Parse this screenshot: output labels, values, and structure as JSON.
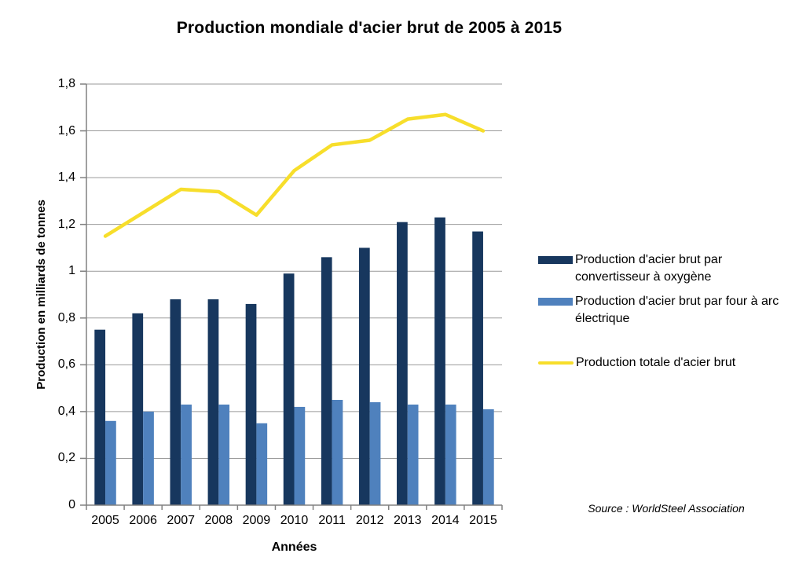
{
  "chart_data": {
    "type": "combo-bar-line",
    "title": "Production mondiale d'acier brut de 2005 à 2015",
    "xlabel": "Années",
    "ylabel": "Production en milliards de tonnes",
    "ylim": [
      0,
      1.8
    ],
    "ytick_step": 0.2,
    "ytick_labels": [
      "0",
      "0,2",
      "0,4",
      "0,6",
      "0,8",
      "1",
      "1,2",
      "1,4",
      "1,6",
      "1,8"
    ],
    "grid": "horizontal",
    "legend_position": "right",
    "categories": [
      "2005",
      "2006",
      "2007",
      "2008",
      "2009",
      "2010",
      "2011",
      "2012",
      "2013",
      "2014",
      "2015"
    ],
    "series": [
      {
        "name": "Production d'acier brut par convertisseur à oxygène",
        "type": "bar",
        "color": "#17375E",
        "values": [
          0.75,
          0.82,
          0.88,
          0.88,
          0.86,
          0.99,
          1.06,
          1.1,
          1.21,
          1.23,
          1.17
        ]
      },
      {
        "name": "Production d'acier brut par four à arc électrique",
        "type": "bar",
        "color": "#4F81BD",
        "values": [
          0.36,
          0.4,
          0.43,
          0.43,
          0.35,
          0.42,
          0.45,
          0.44,
          0.43,
          0.43,
          0.41
        ]
      },
      {
        "name": "Production totale d'acier brut",
        "type": "line",
        "color": "#F7DE2B",
        "values": [
          1.15,
          1.25,
          1.35,
          1.34,
          1.24,
          1.43,
          1.54,
          1.56,
          1.65,
          1.67,
          1.6
        ]
      }
    ]
  },
  "source_note": "Source : WorldSteel Association",
  "colors": {
    "gridline": "#9A9A9A",
    "axis": "#808080",
    "background": "#FFFFFF",
    "text": "#000000"
  }
}
